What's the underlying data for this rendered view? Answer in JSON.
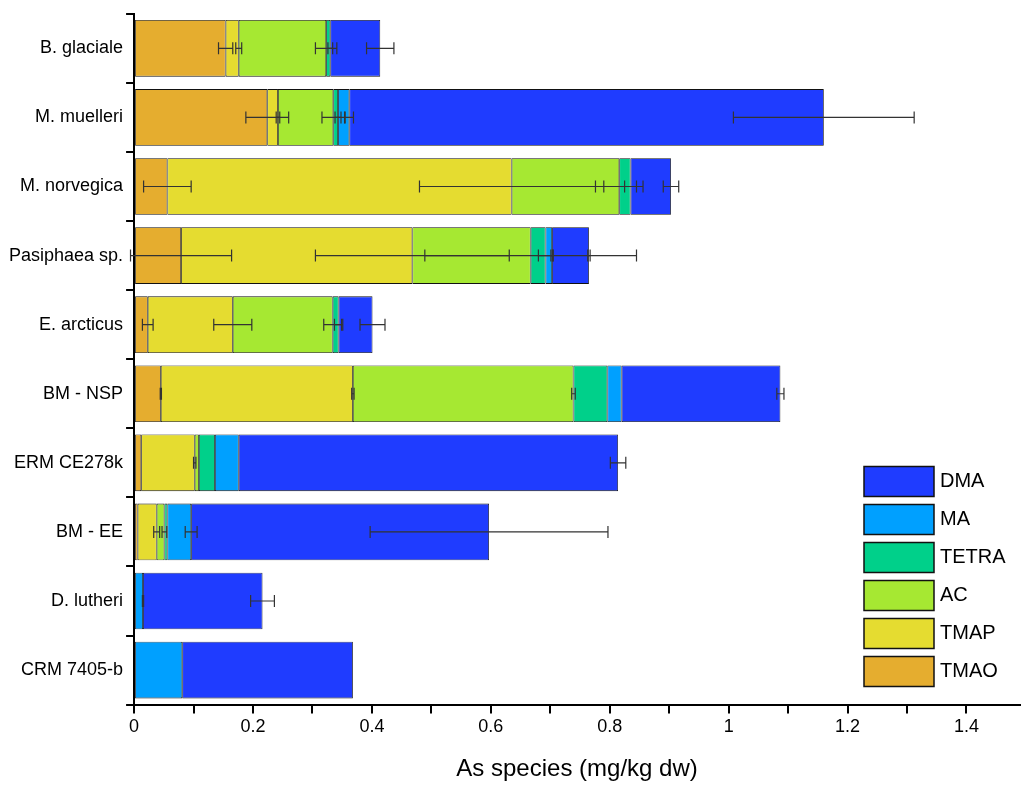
{
  "chart_data": {
    "type": "bar",
    "orientation": "horizontal",
    "stacked": true,
    "xlabel": "As species (mg/kg dw)",
    "categories": [
      "B. glaciale",
      "M. muelleri",
      "M. norvegica",
      "Pasiphaea sp.",
      "E. arcticus",
      "BM - NSP",
      "ERM CE278k",
      "BM - EE",
      "D. lutheri",
      "CRM 7405-b"
    ],
    "xlim": [
      0,
      1.49
    ],
    "xticks": [
      0,
      {
        "value": 0.1,
        "label": null
      },
      0.2,
      {
        "value": 0.3,
        "label": null
      },
      0.4,
      {
        "value": 0.5,
        "label": null
      },
      0.6,
      {
        "value": 0.7,
        "label": null
      },
      0.8,
      {
        "value": 0.9,
        "label": null
      },
      1,
      {
        "value": 1.1,
        "label": null
      },
      1.2,
      {
        "value": 1.3,
        "label": null
      },
      1.4
    ],
    "legend": "bottom right",
    "grid": false,
    "series": [
      {
        "name": "TMAO",
        "color": "#e5ad2f",
        "values": [
          0.154,
          0.224,
          0.056,
          0.079,
          0.023,
          0.045,
          0.012,
          0.006,
          null,
          null
        ],
        "errors": [
          0.012,
          0.036,
          0.04,
          0.085,
          0.009,
          0.001,
          null,
          null,
          null,
          null
        ]
      },
      {
        "name": "TMAP",
        "color": "#e5dc30",
        "values": [
          0.022,
          0.018,
          0.579,
          0.389,
          0.143,
          0.323,
          0.09,
          0.032,
          null,
          null
        ],
        "errors": [
          0.005,
          0.003,
          0.155,
          0.163,
          0.032,
          0.002,
          0.002,
          0.005,
          null,
          null
        ]
      },
      {
        "name": "AC",
        "color": "#a6e832",
        "values": [
          0.147,
          0.093,
          0.181,
          0.199,
          0.168,
          0.371,
          0.007,
          0.013,
          null,
          null
        ],
        "errors": [
          0.018,
          0.019,
          0.04,
          0.178,
          0.015,
          0.003,
          null,
          0.004,
          null,
          null
        ]
      },
      {
        "name": "TETRA",
        "color": "#00d08a",
        "values": [
          0.007,
          0.008,
          0.019,
          0.025,
          0.01,
          0.057,
          0.027,
          0.005,
          null,
          null
        ],
        "errors": [
          0.004,
          0.005,
          0.01,
          0.012,
          0.007,
          null,
          null,
          null,
          null,
          null
        ]
      },
      {
        "name": "MA",
        "color": "#00a0ff",
        "values": [
          null,
          0.019,
          null,
          0.011,
          null,
          0.024,
          0.04,
          0.04,
          0.015,
          0.081
        ],
        "errors": [
          null,
          0.007,
          null,
          0.002,
          null,
          null,
          null,
          0.01,
          0.001,
          null
        ]
      },
      {
        "name": "DMA",
        "color": "#1f3cff",
        "values": [
          0.084,
          0.798,
          0.068,
          0.062,
          0.057,
          0.267,
          0.638,
          0.501,
          0.201,
          0.287
        ],
        "errors": [
          0.023,
          0.152,
          0.013,
          0.002,
          0.021,
          0.006,
          0.013,
          0.2,
          0.02,
          null
        ]
      }
    ]
  }
}
